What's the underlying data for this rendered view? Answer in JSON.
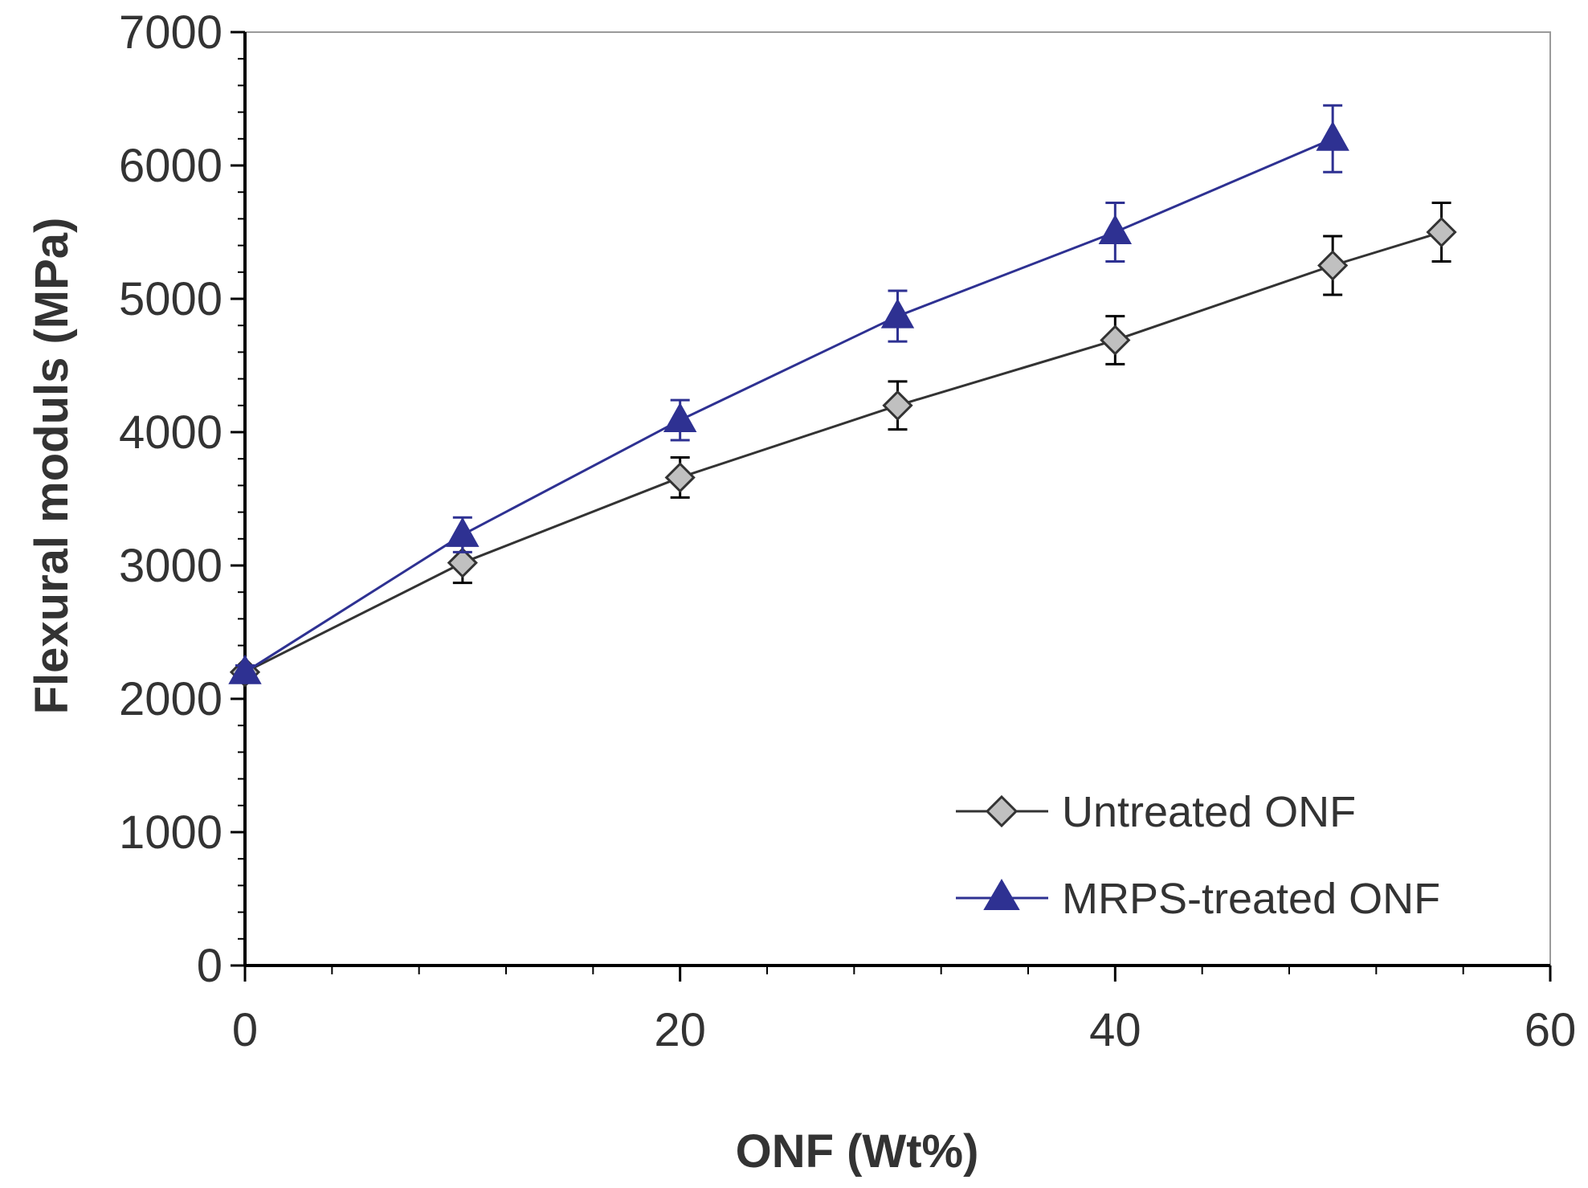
{
  "chart_data": {
    "type": "line",
    "title": "",
    "xlabel": "ONF (Wt%)",
    "ylabel": "Flexural moduls (MPa)",
    "xlim": [
      0,
      60
    ],
    "ylim": [
      0,
      7000
    ],
    "x_ticks": [
      0,
      20,
      40,
      60
    ],
    "x_tick_labels": [
      "0",
      "20",
      "40",
      "60"
    ],
    "x_minor_step": 4,
    "y_ticks": [
      0,
      1000,
      2000,
      3000,
      4000,
      5000,
      6000,
      7000
    ],
    "y_tick_labels": [
      "0",
      "1000",
      "2000",
      "3000",
      "4000",
      "5000",
      "6000",
      "7000"
    ],
    "y_minor_step": 200,
    "grid": false,
    "legend_position": "bottom-right",
    "series": [
      {
        "name": "Untreated  ONF",
        "marker": "diamond",
        "color": "#333333",
        "marker_fill": "#c0c0c0",
        "x": [
          0,
          10,
          20,
          30,
          40,
          50,
          55
        ],
        "y": [
          2200,
          3020,
          3660,
          4200,
          4690,
          5250,
          5500
        ],
        "error": [
          50,
          150,
          150,
          180,
          180,
          220,
          220
        ]
      },
      {
        "name": "MRPS-treated  ONF",
        "marker": "triangle",
        "color": "#2e3192",
        "marker_fill": "#2e3192",
        "x": [
          0,
          10,
          20,
          30,
          40,
          50
        ],
        "y": [
          2200,
          3230,
          4090,
          4870,
          5500,
          6200
        ],
        "error": [
          50,
          130,
          150,
          190,
          220,
          250
        ]
      }
    ]
  }
}
